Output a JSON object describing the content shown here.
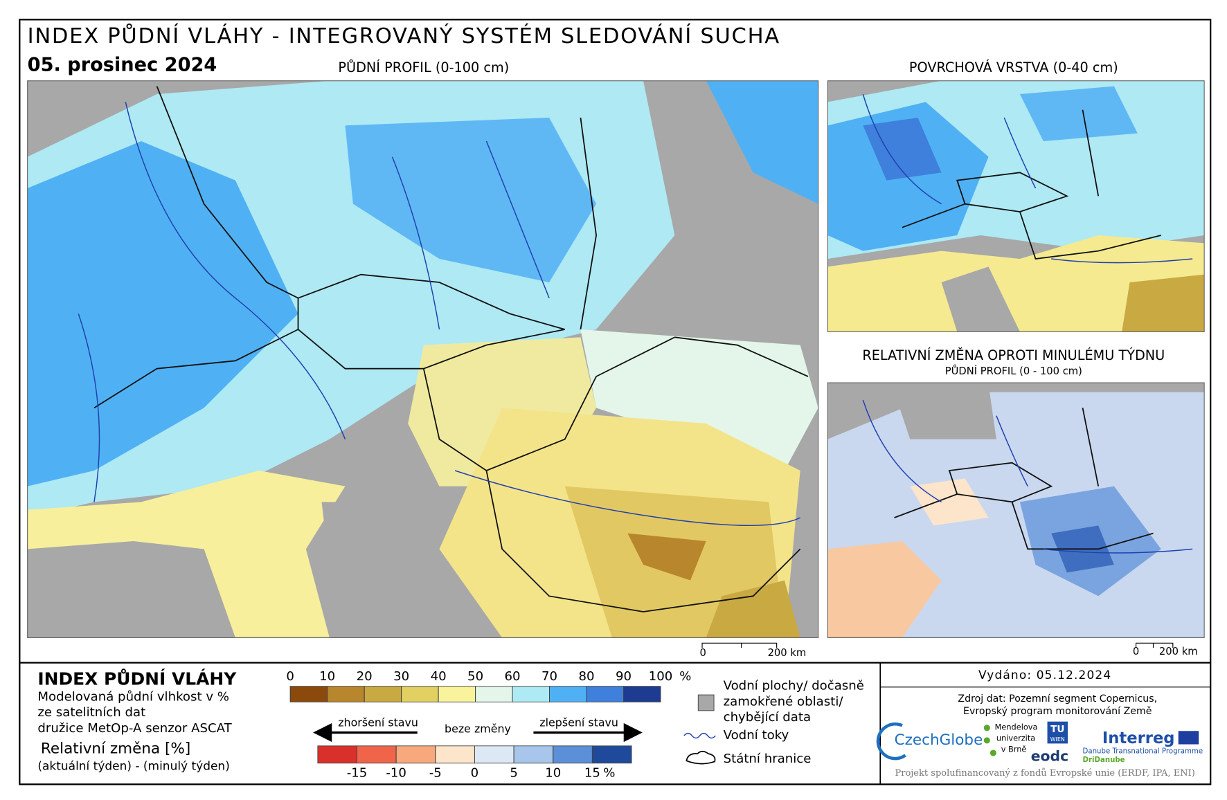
{
  "header": {
    "title": "INDEX PŮDNÍ VLÁHY - INTEGROVANÝ SYSTÉM SLEDOVÁNÍ SUCHA",
    "date": "05. prosinec 2024"
  },
  "maps": [
    {
      "label": "PŮDNÍ PROFIL (0-100 cm)",
      "scale_labels": [
        "0",
        "200 km"
      ]
    },
    {
      "label": "POVRCHOVÁ VRSTVA (0-40 cm)"
    },
    {
      "label": "RELATIVNÍ ZMĚNA OPROTI MINULÉMU TÝDNU",
      "sublabel": "PŮDNÍ PROFIL (0 - 100 cm)",
      "scale_labels": [
        "0",
        "200 km"
      ]
    }
  ],
  "legend": {
    "title": "INDEX PŮDNÍ VLÁHY",
    "description": [
      "Modelovaná půdní vlhkost v %",
      "ze satelitních dat",
      "družice MetOp-A senzor ASCAT"
    ],
    "change_title": "Relativní změna [%]",
    "change_description": "(aktuální týden) - (minulý týden)",
    "index_scale": {
      "lim": [
        0,
        100
      ],
      "ticks": [
        0,
        10,
        20,
        30,
        40,
        50,
        60,
        70,
        80,
        90,
        100
      ],
      "unit": "%",
      "colors": [
        "#8b4a0c",
        "#b8862c",
        "#c9a941",
        "#e2d162",
        "#f9f39c",
        "#e3f6e9",
        "#aeeaf4",
        "#4fb1f4",
        "#3e80dc",
        "#1e3b92"
      ]
    },
    "change_scale": {
      "lim": [
        -20,
        20
      ],
      "ticks": [
        -15,
        -10,
        -5,
        0,
        5,
        10,
        15
      ],
      "unit": "%",
      "colors": [
        "#d9302c",
        "#f0654a",
        "#f8a97c",
        "#fde5cb",
        "#dde8f5",
        "#a8c6ec",
        "#5b8fd8",
        "#1f4a9c"
      ],
      "worse": "zhoršení stavu",
      "none": "beze změny",
      "better": "zlepšení stavu"
    },
    "symbols": {
      "water": [
        "Vodní plochy/ dočasně",
        "zamokřené oblasti/",
        "chybějící data"
      ],
      "rivers": "Vodní toky",
      "borders": "Státní hranice"
    }
  },
  "footer": {
    "issued": "Vydáno: 05.12.2024",
    "source": [
      "Zdroj dat: Pozemní segment Copernicus,",
      "Evropský program monitorování Země"
    ],
    "logos": [
      "CzechGlobe",
      "Mendelova",
      "univerzita",
      "v Brně",
      "TU",
      "WIEN",
      "eodc",
      "Interreg",
      "Danube Transnational Programme",
      "DriDanube"
    ],
    "funding": "Projekt spolufinancovaný z fondů Evropské unie (ERDF, IPA, ENI)"
  }
}
